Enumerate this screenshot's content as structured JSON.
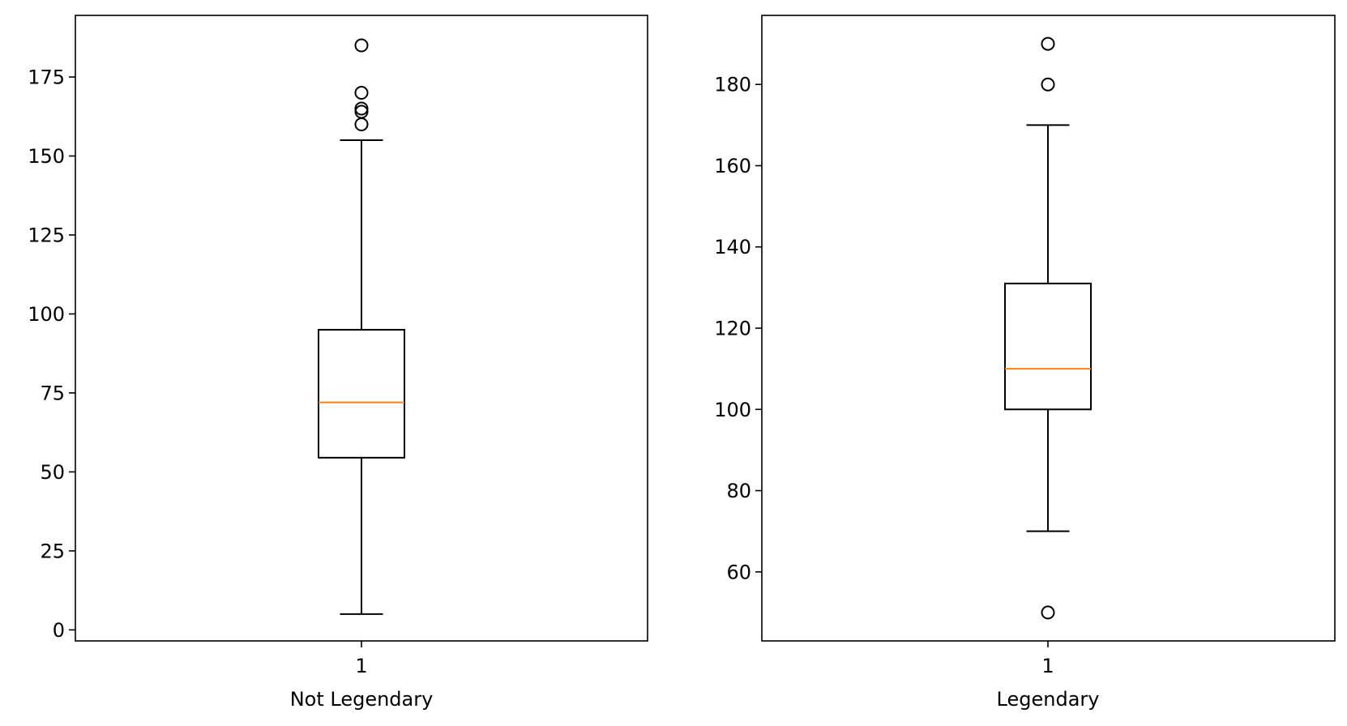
{
  "colors": {
    "box": "#000000",
    "median": "#ff7f0e",
    "background": "#ffffff"
  },
  "chart_data": [
    {
      "type": "box",
      "xlabel": "Not Legendary",
      "ylabel": "",
      "ylim": [
        -3.5,
        194.5
      ],
      "yticks": [
        0,
        25,
        50,
        75,
        100,
        125,
        150,
        175
      ],
      "categories": [
        "1"
      ],
      "box": {
        "whisker_low": 5,
        "q1": 54.5,
        "median": 72,
        "q3": 95,
        "whisker_high": 155,
        "outliers": [
          160,
          164,
          165,
          170,
          185
        ]
      }
    },
    {
      "type": "box",
      "xlabel": "Legendary",
      "ylabel": "",
      "ylim": [
        43,
        197
      ],
      "yticks": [
        60,
        80,
        100,
        120,
        140,
        160,
        180
      ],
      "categories": [
        "1"
      ],
      "box": {
        "whisker_low": 70,
        "q1": 100,
        "median": 110,
        "q3": 131,
        "whisker_high": 170,
        "outliers": [
          50,
          180,
          190
        ]
      }
    }
  ]
}
